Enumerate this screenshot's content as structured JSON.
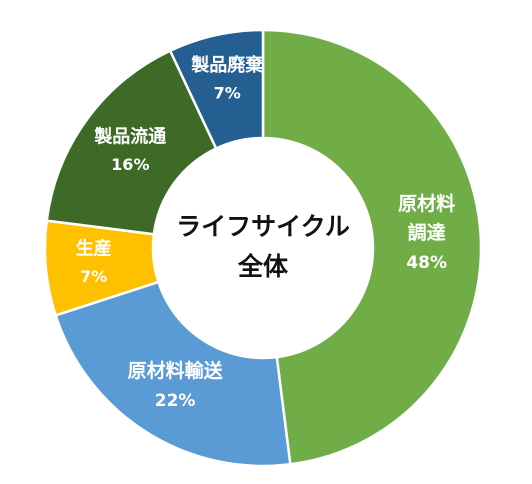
{
  "chart_data": {
    "type": "pie",
    "center_label_lines": [
      "ライフサイクル",
      "全体"
    ],
    "slices": [
      {
        "label_lines": [
          "原材料",
          "調達"
        ],
        "value": 48,
        "value_label": "48%",
        "color": "#70AD47",
        "label_color": "#ffffff"
      },
      {
        "label_lines": [
          "原材料輸送"
        ],
        "value": 22,
        "value_label": "22%",
        "color": "#5B9BD5",
        "label_color": "#ffffff"
      },
      {
        "label_lines": [
          "生産"
        ],
        "value": 7,
        "value_label": "7%",
        "color": "#FFC000",
        "label_color": "#ffffff"
      },
      {
        "label_lines": [
          "製品流通"
        ],
        "value": 16,
        "value_label": "16%",
        "color": "#3D6B27",
        "label_color": "#ffffff"
      },
      {
        "label_lines": [
          "製品廃棄"
        ],
        "value": 7,
        "value_label": "7%",
        "color": "#255E91",
        "label_color": "#ffffff"
      }
    ]
  }
}
